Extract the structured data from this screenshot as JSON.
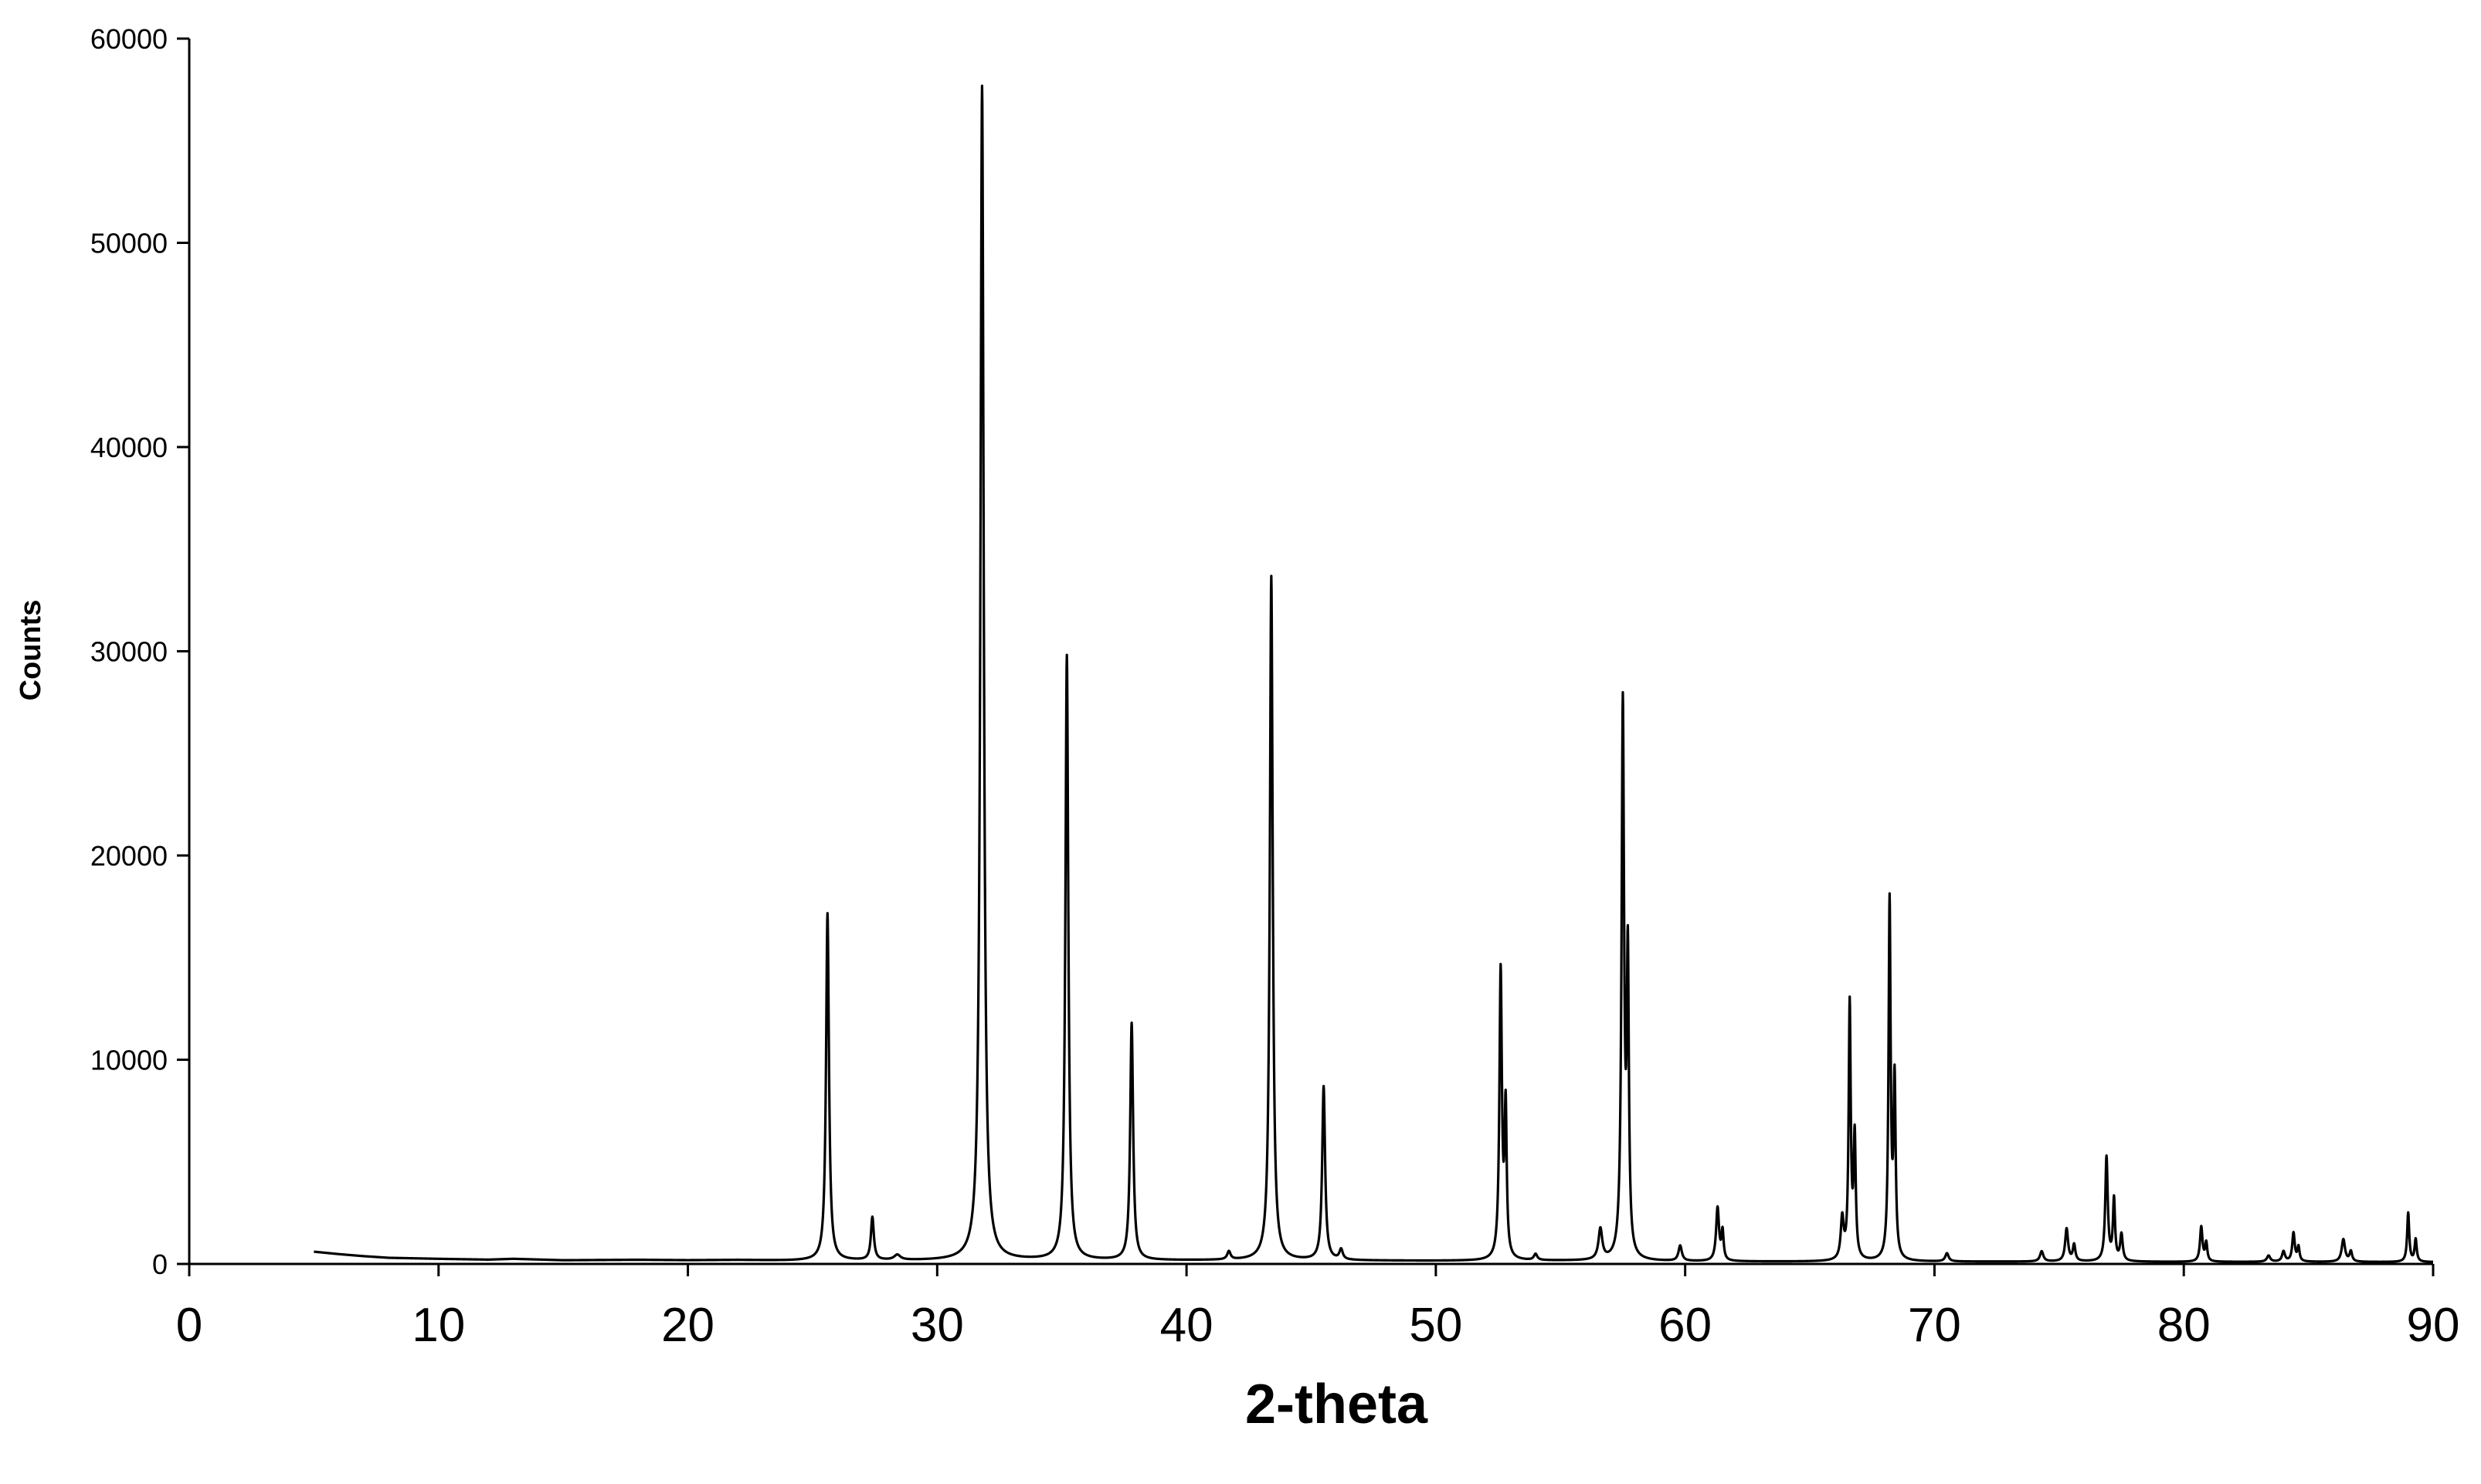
{
  "chart_data": {
    "type": "line",
    "title": "",
    "xlabel": "2-theta",
    "ylabel": "Counts",
    "xlim": [
      0,
      90
    ],
    "ylim": [
      0,
      60000
    ],
    "x_ticks": [
      "0",
      "10",
      "20",
      "30",
      "40",
      "50",
      "60",
      "70",
      "80",
      "90"
    ],
    "y_ticks": [
      "0",
      "10000",
      "20000",
      "30000",
      "40000",
      "50000",
      "60000"
    ],
    "grid": false,
    "legend": "none",
    "line_color": "#000000",
    "series": [
      {
        "baseline": [
          [
            5,
            600
          ],
          [
            6,
            480
          ],
          [
            7,
            380
          ],
          [
            8,
            300
          ],
          [
            10,
            250
          ],
          [
            12,
            210
          ],
          [
            13,
            250
          ],
          [
            15,
            180
          ],
          [
            18,
            200
          ],
          [
            20,
            180
          ],
          [
            22,
            190
          ],
          [
            24,
            160
          ],
          [
            26,
            160
          ],
          [
            30,
            160
          ],
          [
            34,
            180
          ],
          [
            38,
            170
          ],
          [
            42,
            170
          ],
          [
            46,
            160
          ],
          [
            50,
            150
          ],
          [
            55,
            150
          ],
          [
            60,
            120
          ],
          [
            65,
            110
          ],
          [
            70,
            110
          ],
          [
            75,
            110
          ],
          [
            80,
            100
          ],
          [
            85,
            100
          ],
          [
            90,
            90
          ]
        ],
        "peaks": [
          [
            25.6,
            17000,
            0.07
          ],
          [
            27.4,
            2100,
            0.07
          ],
          [
            28.4,
            250,
            0.15
          ],
          [
            31.8,
            57500,
            0.08
          ],
          [
            35.2,
            29600,
            0.07
          ],
          [
            37.8,
            11600,
            0.07
          ],
          [
            41.7,
            400,
            0.08
          ],
          [
            43.4,
            33500,
            0.07
          ],
          [
            45.5,
            8500,
            0.07
          ],
          [
            46.2,
            500,
            0.08
          ],
          [
            52.6,
            14100,
            0.06
          ],
          [
            52.8,
            7200,
            0.05
          ],
          [
            54.0,
            300,
            0.08
          ],
          [
            56.6,
            1500,
            0.09
          ],
          [
            57.5,
            27000,
            0.06
          ],
          [
            57.7,
            14200,
            0.05
          ],
          [
            59.8,
            750,
            0.08
          ],
          [
            61.3,
            2600,
            0.07
          ],
          [
            61.5,
            1400,
            0.05
          ],
          [
            66.3,
            2000,
            0.07
          ],
          [
            66.6,
            12500,
            0.05
          ],
          [
            66.8,
            5900,
            0.05
          ],
          [
            68.2,
            17500,
            0.05
          ],
          [
            68.4,
            8600,
            0.05
          ],
          [
            70.5,
            400,
            0.08
          ],
          [
            74.3,
            500,
            0.08
          ],
          [
            75.3,
            1600,
            0.07
          ],
          [
            75.6,
            800,
            0.06
          ],
          [
            76.9,
            5100,
            0.06
          ],
          [
            77.2,
            3000,
            0.05
          ],
          [
            77.5,
            1300,
            0.06
          ],
          [
            80.7,
            1700,
            0.06
          ],
          [
            80.9,
            900,
            0.05
          ],
          [
            83.4,
            300,
            0.08
          ],
          [
            84.0,
            500,
            0.07
          ],
          [
            84.4,
            1400,
            0.06
          ],
          [
            84.6,
            700,
            0.05
          ],
          [
            86.4,
            1100,
            0.08
          ],
          [
            86.7,
            500,
            0.06
          ],
          [
            89.0,
            2400,
            0.05
          ],
          [
            89.3,
            1100,
            0.05
          ]
        ]
      }
    ]
  }
}
